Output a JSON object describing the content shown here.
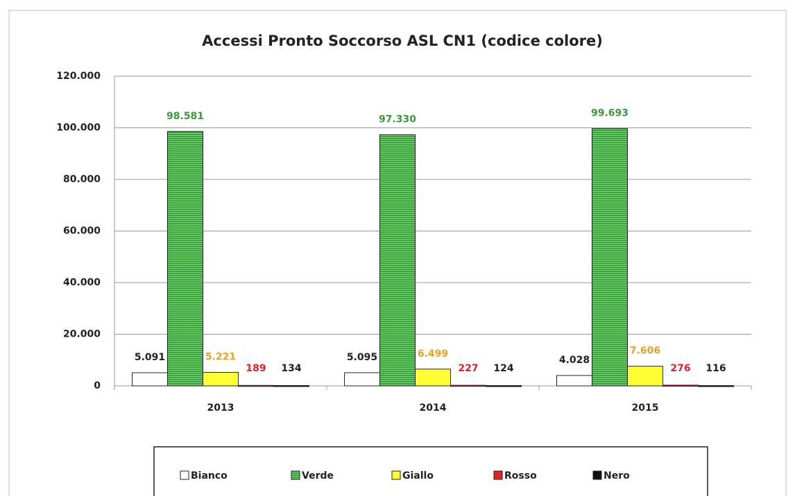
{
  "chart_data": {
    "type": "bar",
    "title": "Accessi Pronto Soccorso ASL CN1 (codice colore)",
    "categories": [
      "2013",
      "2014",
      "2015"
    ],
    "series": [
      {
        "name": "Bianco",
        "color": "#ffffff",
        "label_color": "#222222",
        "values": [
          5091,
          5095,
          4028
        ],
        "value_labels": [
          "5.091",
          "5.095",
          "4.028"
        ]
      },
      {
        "name": "Verde",
        "color": "#3aa63a",
        "label_color": "#3a9a3a",
        "values": [
          98581,
          97330,
          99693
        ],
        "value_labels": [
          "98.581",
          "97.330",
          "99.693"
        ]
      },
      {
        "name": "Giallo",
        "color": "#ffff33",
        "label_color": "#f0a020",
        "values": [
          5221,
          6499,
          7606
        ],
        "value_labels": [
          "5.221",
          "6.499",
          "7.606"
        ]
      },
      {
        "name": "Rosso",
        "color": "#e0202a",
        "label_color": "#e0202a",
        "values": [
          189,
          227,
          276
        ],
        "value_labels": [
          "189",
          "227",
          "276"
        ]
      },
      {
        "name": "Nero",
        "color": "#111111",
        "label_color": "#222222",
        "values": [
          134,
          124,
          116
        ],
        "value_labels": [
          "134",
          "124",
          "116"
        ]
      }
    ],
    "ylim": [
      0,
      120000
    ],
    "yticks": [
      0,
      {
        "value": 20000,
        "label": "20.000"
      },
      {
        "value": 40000,
        "label": "40.000"
      },
      {
        "value": 60000,
        "label": "60.000"
      },
      {
        "value": 80000,
        "label": "80.000"
      },
      {
        "value": 100000,
        "label": "100.000"
      },
      {
        "value": 120000,
        "label": "120.000"
      }
    ],
    "grid": true,
    "legend": "bottom"
  }
}
